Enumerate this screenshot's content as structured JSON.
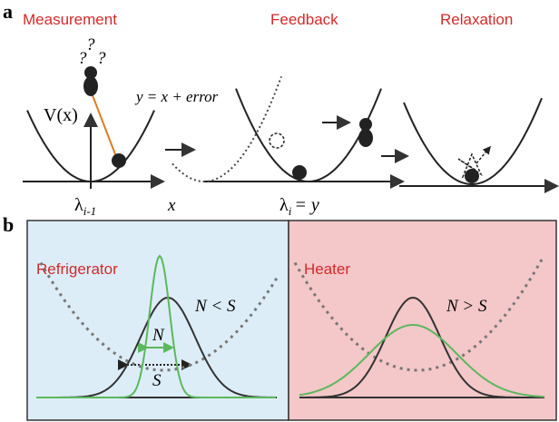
{
  "panel_a": {
    "label": "a",
    "steps": [
      "Measurement",
      "Feedback",
      "Relaxation"
    ],
    "question_marks": [
      "?",
      "?",
      "?"
    ],
    "potential_label": "V(x)",
    "measurement_equation": "y = x + error",
    "x_axis_label": "x",
    "lambda_prev": {
      "symbol": "λ",
      "subscript": "i-1"
    },
    "lambda_new": {
      "symbol": "λ",
      "subscript": "i",
      "rest": "= y"
    }
  },
  "panel_b": {
    "label": "b",
    "left": {
      "title": "Refrigerator",
      "relation": "N < S",
      "narrow_label": "N",
      "wide_label": "S"
    },
    "right": {
      "title": "Heater",
      "relation": "N > S"
    }
  }
}
